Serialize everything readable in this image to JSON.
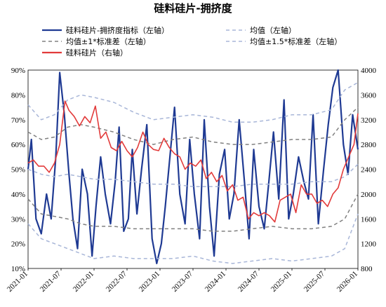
{
  "chart_data": {
    "type": "line",
    "title": "硅料硅片-拥挤度",
    "x_ticks": [
      "2021-01",
      "2021-07",
      "2022-01",
      "2022-07",
      "2023-01",
      "2023-07",
      "2024-01",
      "2024-07",
      "2025-01",
      "2025-07",
      "2026-01"
    ],
    "y_left": {
      "range": [
        0.1,
        0.9
      ],
      "ticks": [
        "10%",
        "20%",
        "30%",
        "40%",
        "50%",
        "60%",
        "70%",
        "80%",
        "90%"
      ]
    },
    "y_right": {
      "range": [
        800,
        4000
      ],
      "ticks": [
        "800",
        "1200",
        "1600",
        "2000",
        "2400",
        "2800",
        "3200",
        "3600",
        "4000"
      ]
    },
    "legend": [
      {
        "label": "硅料硅片-拥挤度指标（左轴）",
        "color": "#1f3a93",
        "style": "solid"
      },
      {
        "label": "均值（左轴）",
        "color": "#a8b6d8",
        "style": "dashed"
      },
      {
        "label": "均值±1*标准差（左轴）",
        "color": "#808080",
        "style": "dashed"
      },
      {
        "label": "均值±1.5*标准差（左轴）",
        "color": "#a8b6d8",
        "style": "dashed"
      },
      {
        "label": "硅料硅片（右轴）",
        "color": "#e23b3b",
        "style": "solid"
      }
    ],
    "series": [
      {
        "name": "硅料硅片-拥挤度指标（左轴）",
        "axis": "left",
        "color": "#1f3a93",
        "x": [
          2021.0,
          2021.05,
          2021.12,
          2021.2,
          2021.28,
          2021.35,
          2021.42,
          2021.48,
          2021.55,
          2021.62,
          2021.68,
          2021.75,
          2021.82,
          2021.9,
          2021.97,
          2022.03,
          2022.1,
          2022.17,
          2022.25,
          2022.32,
          2022.38,
          2022.45,
          2022.52,
          2022.58,
          2022.65,
          2022.72,
          2022.8,
          2022.88,
          2022.95,
          2023.02,
          2023.08,
          2023.15,
          2023.22,
          2023.3,
          2023.38,
          2023.45,
          2023.52,
          2023.6,
          2023.67,
          2023.75,
          2023.82,
          2023.9,
          2023.98,
          2024.05,
          2024.12,
          2024.2,
          2024.28,
          2024.35,
          2024.42,
          2024.5,
          2024.58,
          2024.65,
          2024.72,
          2024.8,
          2024.88,
          2024.95,
          2025.02,
          2025.1,
          2025.18,
          2025.25,
          2025.32,
          2025.4,
          2025.48,
          2025.55,
          2025.62,
          2025.7,
          2025.78,
          2025.85,
          2025.92,
          2026.0
        ],
        "y": [
          0.5,
          0.62,
          0.3,
          0.24,
          0.4,
          0.3,
          0.55,
          0.89,
          0.72,
          0.48,
          0.3,
          0.18,
          0.5,
          0.4,
          0.15,
          0.35,
          0.55,
          0.4,
          0.28,
          0.45,
          0.67,
          0.25,
          0.3,
          0.58,
          0.32,
          0.5,
          0.68,
          0.22,
          0.12,
          0.2,
          0.35,
          0.55,
          0.75,
          0.4,
          0.28,
          0.62,
          0.4,
          0.22,
          0.7,
          0.35,
          0.15,
          0.48,
          0.58,
          0.3,
          0.4,
          0.7,
          0.45,
          0.22,
          0.58,
          0.35,
          0.26,
          0.45,
          0.65,
          0.38,
          0.78,
          0.3,
          0.4,
          0.55,
          0.45,
          0.38,
          0.72,
          0.28,
          0.5,
          0.68,
          0.83,
          0.9,
          0.6,
          0.48,
          0.72,
          0.58
        ]
      },
      {
        "name": "均值（左轴）",
        "axis": "left",
        "color": "#a8b6d8",
        "x": [
          2021.0,
          2021.2,
          2021.4,
          2021.6,
          2021.8,
          2022.0,
          2022.3,
          2022.6,
          2022.9,
          2023.2,
          2023.5,
          2023.8,
          2024.1,
          2024.4,
          2024.7,
          2025.0,
          2025.3,
          2025.6,
          2025.8,
          2026.0
        ],
        "y": [
          0.5,
          0.48,
          0.47,
          0.48,
          0.47,
          0.46,
          0.46,
          0.45,
          0.44,
          0.44,
          0.43,
          0.43,
          0.43,
          0.44,
          0.44,
          0.44,
          0.45,
          0.45,
          0.47,
          0.52
        ]
      },
      {
        "name": "均值±1*标准差（左轴）上",
        "axis": "left",
        "color": "#808080",
        "x": [
          2021.0,
          2021.2,
          2021.4,
          2021.6,
          2021.8,
          2022.0,
          2022.3,
          2022.6,
          2022.9,
          2023.2,
          2023.5,
          2023.8,
          2024.1,
          2024.4,
          2024.7,
          2025.0,
          2025.3,
          2025.6,
          2025.8,
          2026.0
        ],
        "y": [
          0.65,
          0.62,
          0.63,
          0.67,
          0.68,
          0.67,
          0.65,
          0.62,
          0.6,
          0.62,
          0.63,
          0.61,
          0.6,
          0.6,
          0.61,
          0.62,
          0.62,
          0.63,
          0.7,
          0.75
        ]
      },
      {
        "name": "均值±1*标准差（左轴）下",
        "axis": "left",
        "color": "#808080",
        "x": [
          2021.0,
          2021.2,
          2021.4,
          2021.6,
          2021.8,
          2022.0,
          2022.3,
          2022.6,
          2022.9,
          2023.2,
          2023.5,
          2023.8,
          2024.1,
          2024.4,
          2024.7,
          2025.0,
          2025.3,
          2025.6,
          2025.8,
          2026.0
        ],
        "y": [
          0.38,
          0.32,
          0.31,
          0.3,
          0.28,
          0.27,
          0.27,
          0.26,
          0.26,
          0.26,
          0.26,
          0.25,
          0.25,
          0.26,
          0.27,
          0.26,
          0.26,
          0.27,
          0.3,
          0.4
        ]
      },
      {
        "name": "均值±1.5*标准差（左轴）上",
        "axis": "left",
        "color": "#a8b6d8",
        "x": [
          2021.0,
          2021.2,
          2021.4,
          2021.6,
          2021.8,
          2022.0,
          2022.3,
          2022.6,
          2022.9,
          2023.2,
          2023.5,
          2023.8,
          2024.1,
          2024.4,
          2024.7,
          2025.0,
          2025.3,
          2025.6,
          2025.8,
          2026.0
        ],
        "y": [
          0.76,
          0.7,
          0.72,
          0.78,
          0.8,
          0.79,
          0.77,
          0.73,
          0.7,
          0.71,
          0.72,
          0.71,
          0.69,
          0.69,
          0.7,
          0.72,
          0.72,
          0.74,
          0.82,
          0.85
        ]
      },
      {
        "name": "均值±1.5*标准差（左轴）下",
        "axis": "left",
        "color": "#a8b6d8",
        "x": [
          2021.0,
          2021.2,
          2021.4,
          2021.6,
          2021.8,
          2022.0,
          2022.3,
          2022.6,
          2022.9,
          2023.2,
          2023.5,
          2023.8,
          2024.1,
          2024.4,
          2024.7,
          2025.0,
          2025.3,
          2025.6,
          2025.8,
          2026.0
        ],
        "y": [
          0.28,
          0.22,
          0.2,
          0.18,
          0.16,
          0.14,
          0.15,
          0.14,
          0.14,
          0.14,
          0.15,
          0.13,
          0.12,
          0.13,
          0.14,
          0.13,
          0.14,
          0.15,
          0.18,
          0.32
        ]
      },
      {
        "name": "硅料硅片（右轴）",
        "axis": "right",
        "color": "#e23b3b",
        "x": [
          2021.0,
          2021.08,
          2021.16,
          2021.24,
          2021.32,
          2021.4,
          2021.48,
          2021.56,
          2021.62,
          2021.7,
          2021.78,
          2021.86,
          2021.94,
          2022.02,
          2022.1,
          2022.18,
          2022.26,
          2022.34,
          2022.42,
          2022.5,
          2022.58,
          2022.66,
          2022.74,
          2022.82,
          2022.9,
          2022.98,
          2023.06,
          2023.14,
          2023.22,
          2023.3,
          2023.38,
          2023.46,
          2023.54,
          2023.62,
          2023.7,
          2023.78,
          2023.86,
          2023.94,
          2024.02,
          2024.1,
          2024.18,
          2024.26,
          2024.34,
          2024.42,
          2024.5,
          2024.58,
          2024.66,
          2024.74,
          2024.82,
          2024.9,
          2024.98,
          2025.06,
          2025.14,
          2025.22,
          2025.3,
          2025.38,
          2025.46,
          2025.54,
          2025.62,
          2025.7,
          2025.78,
          2025.86,
          2025.94,
          2026.0
        ],
        "y": [
          2500,
          2550,
          2450,
          2450,
          2350,
          2500,
          2800,
          3500,
          3350,
          3250,
          3100,
          3250,
          3150,
          3420,
          2900,
          3000,
          2750,
          2700,
          2850,
          2700,
          2600,
          2750,
          3000,
          2800,
          2720,
          2700,
          2900,
          2750,
          2650,
          2600,
          2400,
          2500,
          2450,
          2550,
          2250,
          2350,
          2200,
          2300,
          2050,
          2150,
          1900,
          1950,
          1600,
          1700,
          1650,
          1700,
          1650,
          1550,
          1900,
          1950,
          2000,
          1700,
          2150,
          2000,
          2000,
          1850,
          1900,
          1800,
          2000,
          2100,
          2400,
          2600,
          2800,
          3300
        ]
      }
    ]
  }
}
